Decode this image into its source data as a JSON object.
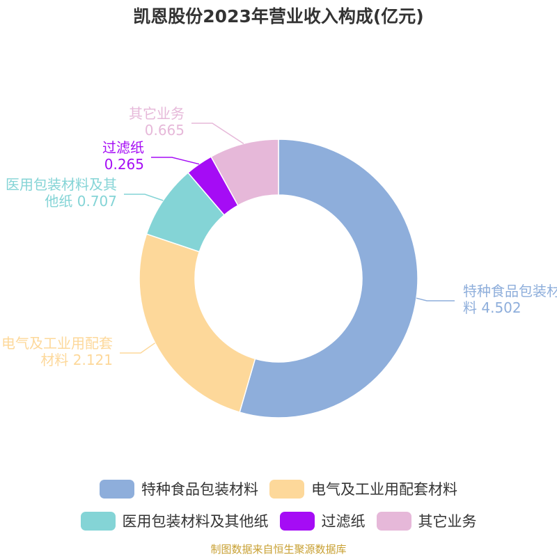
{
  "chart_data": {
    "type": "donut",
    "title": "凯恩股份2023年营业收入构成(亿元)",
    "categories": [
      "特种食品包装材料",
      "电气及工业用配套材料",
      "医用包装材料及其他纸",
      "过滤纸",
      "其它业务"
    ],
    "values": [
      4.502,
      2.121,
      0.707,
      0.265,
      0.665
    ],
    "colors": [
      "#8eaedb",
      "#fdd89a",
      "#84d4d6",
      "#a50cf5",
      "#e6b8d9"
    ],
    "source": "制图数据来自恒生聚源数据库"
  }
}
